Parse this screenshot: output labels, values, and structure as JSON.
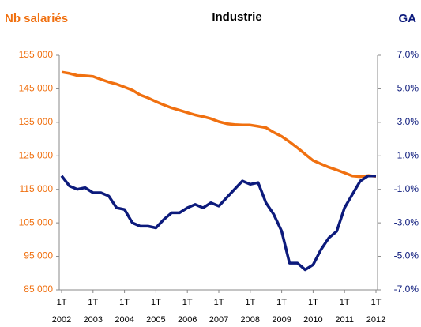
{
  "chart_data": {
    "type": "line",
    "title": "Industrie",
    "ylabel": "Nb salariés",
    "y2label": "GA",
    "categories": [
      "1T 2002",
      null,
      null,
      null,
      "1T 2003",
      null,
      null,
      null,
      "1T 2004",
      null,
      null,
      null,
      "1T 2005",
      null,
      null,
      null,
      "1T 2006",
      null,
      null,
      null,
      "1T 2007",
      null,
      null,
      null,
      "1T 2008",
      null,
      null,
      null,
      "1T 2009",
      null,
      null,
      null,
      "1T 2010",
      null,
      null,
      null,
      "1T 2011",
      null,
      null,
      null,
      "1T 2012"
    ],
    "series": [
      {
        "name": "Nb salariés",
        "color": "#f07010",
        "axis": "y",
        "values": [
          150000,
          149600,
          149000,
          148900,
          148700,
          147800,
          147000,
          146400,
          145500,
          144600,
          143200,
          142300,
          141200,
          140200,
          139300,
          138600,
          137900,
          137200,
          136700,
          136100,
          135200,
          134600,
          134300,
          134200,
          134200,
          133800,
          133400,
          132000,
          130800,
          129200,
          127400,
          125500,
          123600,
          122600,
          121600,
          120800,
          119900,
          119000,
          118800,
          119100,
          118900
        ]
      },
      {
        "name": "GA",
        "color": "#0c1a7c",
        "axis": "y2",
        "values": [
          -0.2,
          -0.8,
          -1.0,
          -0.9,
          -1.2,
          -1.2,
          -1.4,
          -2.1,
          -2.2,
          -3.0,
          -3.2,
          -3.2,
          -3.3,
          -2.8,
          -2.4,
          -2.4,
          -2.1,
          -1.9,
          -2.1,
          -1.8,
          -2.0,
          -1.5,
          -1.0,
          -0.5,
          -0.7,
          -0.6,
          -1.8,
          -2.5,
          -3.5,
          -5.4,
          -5.4,
          -5.8,
          -5.5,
          -4.6,
          -3.9,
          -3.5,
          -2.1,
          -1.3,
          -0.5,
          -0.2,
          -0.2
        ]
      }
    ],
    "ylim": [
      85000,
      155000
    ],
    "yticks": [
      {
        "value": 85000,
        "label": "85 000"
      },
      {
        "value": 95000,
        "label": "95 000"
      },
      {
        "value": 105000,
        "label": "105 000"
      },
      {
        "value": 115000,
        "label": "115 000"
      },
      {
        "value": 125000,
        "label": "125 000"
      },
      {
        "value": 135000,
        "label": "135 000"
      },
      {
        "value": 145000,
        "label": "145 000"
      },
      {
        "value": 155000,
        "label": "155 000"
      }
    ],
    "y2lim": [
      -7,
      7
    ],
    "y2ticks": [
      {
        "value": -7,
        "label": "-7.0%"
      },
      {
        "value": -5,
        "label": "-5.0%"
      },
      {
        "value": -3,
        "label": "-3.0%"
      },
      {
        "value": -1,
        "label": "-1.0%"
      },
      {
        "value": 1,
        "label": "1.0%"
      },
      {
        "value": 3,
        "label": "3.0%"
      },
      {
        "value": 5,
        "label": "5.0%"
      },
      {
        "value": 7,
        "label": "7.0%"
      }
    ]
  }
}
